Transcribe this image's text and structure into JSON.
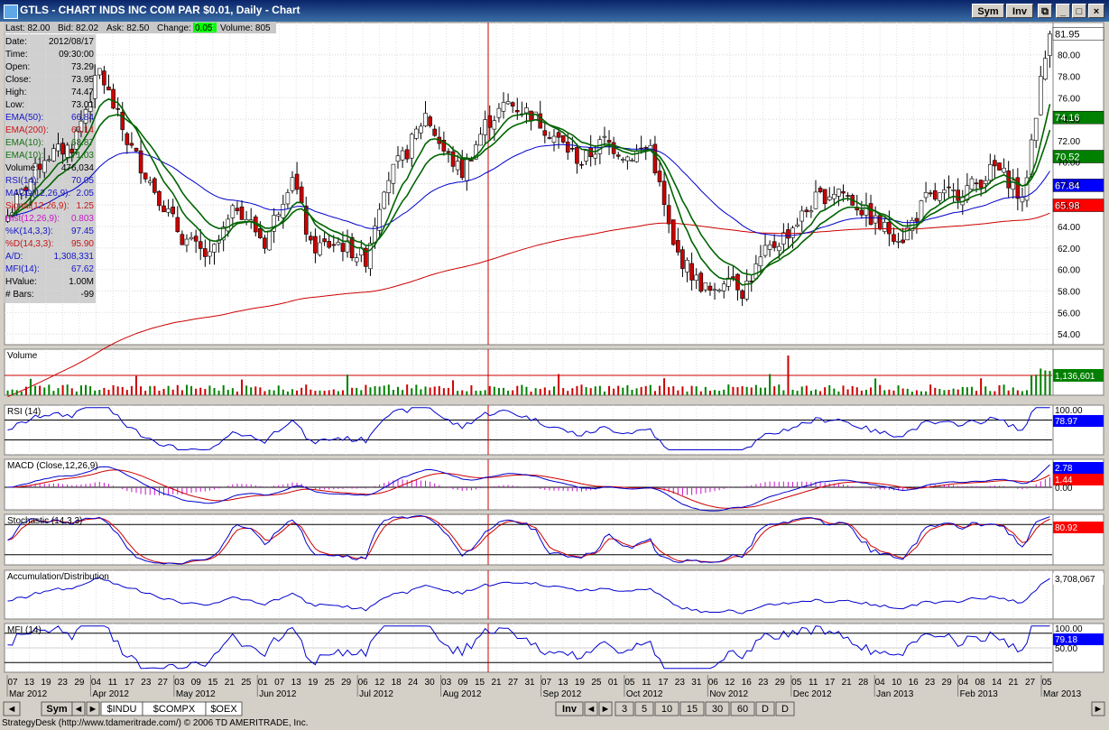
{
  "window": {
    "title": "GTLS - CHART INDS INC COM PAR $0.01, Daily - Chart",
    "buttons": [
      "Sym",
      "Inv"
    ]
  },
  "quote_bar": {
    "last": "Last: 82.00",
    "bid": "Bid: 82.02",
    "ask": "Ask: 82.50",
    "change_label": "Change:",
    "change_value": "0.05",
    "volume": "Volume: 805"
  },
  "data_window": [
    {
      "k": "Date:",
      "v": "2012/08/17",
      "c": "#000000"
    },
    {
      "k": "Time:",
      "v": "09:30:00",
      "c": "#000000"
    },
    {
      "k": "Open:",
      "v": "73.29",
      "c": "#000000"
    },
    {
      "k": "Close:",
      "v": "73.95",
      "c": "#000000"
    },
    {
      "k": "High:",
      "v": "74.47",
      "c": "#000000"
    },
    {
      "k": "Low:",
      "v": "73.01",
      "c": "#000000"
    },
    {
      "k": "EMA(50):",
      "v": "66.84",
      "c": "#1515c8"
    },
    {
      "k": "EMA(200):",
      "v": "63.14",
      "c": "#c81515"
    },
    {
      "k": "EMA(10):",
      "v": "68.87",
      "c": "#157015"
    },
    {
      "k": "EMA(10):",
      "v": "71.03",
      "c": "#157015"
    },
    {
      "k": "Volume:",
      "v": "476,034",
      "c": "#000000"
    },
    {
      "k": "RSI(14):",
      "v": "70.05",
      "c": "#1515c8"
    },
    {
      "k": "MACD(12,26,9):",
      "v": "2.05",
      "c": "#1515c8"
    },
    {
      "k": "Signal(12,26,9):",
      "v": "1.25",
      "c": "#c81515"
    },
    {
      "k": "Hist(12,26,9):",
      "v": "0.803",
      "c": "#c815c8"
    },
    {
      "k": "%K(14,3,3):",
      "v": "97.45",
      "c": "#1515c8"
    },
    {
      "k": "%D(14,3,3):",
      "v": "95.90",
      "c": "#c81515"
    },
    {
      "k": "A/D:",
      "v": "1,308,331",
      "c": "#1515c8"
    },
    {
      "k": "MFI(14):",
      "v": "67.62",
      "c": "#1515c8"
    },
    {
      "k": "HValue:",
      "v": "1.00M",
      "c": "#000000"
    },
    {
      "k": "# Bars:",
      "v": "-99",
      "c": "#000000"
    }
  ],
  "price_axis_ticks": [
    "54.00",
    "56.00",
    "58.00",
    "60.00",
    "62.00",
    "64.00",
    "66.00",
    "68.00",
    "70.00",
    "72.00",
    "74.00",
    "76.00",
    "78.00",
    "80.00"
  ],
  "price_badges": [
    {
      "text": "81.95",
      "bg": "#ffffff",
      "fg": "#000000",
      "value": 81.95
    },
    {
      "text": "74.16",
      "bg": "#008000",
      "fg": "#ffffff",
      "value": 74.16
    },
    {
      "text": "70.52",
      "bg": "#008000",
      "fg": "#ffffff",
      "value": 70.52
    },
    {
      "text": "67.84",
      "bg": "#0000ff",
      "fg": "#ffffff",
      "value": 67.84
    },
    {
      "text": "65.98",
      "bg": "#ff0000",
      "fg": "#ffffff",
      "value": 65.98
    }
  ],
  "panels": {
    "volume": {
      "label": "Volume",
      "badge": "1,136,601"
    },
    "rsi": {
      "label": "RSI (14)",
      "top_tick": "100.00",
      "badge": "78.97"
    },
    "macd": {
      "label": "MACD (Close,12,26,9)",
      "badge_blue": "2.78",
      "badge_red": "1.44",
      "zero_tick": "0.00"
    },
    "stoch": {
      "label": "Stochastic (14,3,3)",
      "badge": "80.92"
    },
    "ad": {
      "label": "Accumulation/Distribution",
      "badge": "3,708,067"
    },
    "mfi": {
      "label": "MFI (14)",
      "top_tick": "100.00",
      "mid_tick": "50.00",
      "badge": "79.18"
    }
  },
  "x_axis": {
    "days": [
      "07",
      "13",
      "19",
      "23",
      "29",
      "04",
      "11",
      "17",
      "23",
      "27",
      "03",
      "09",
      "15",
      "21",
      "25",
      "01",
      "07",
      "13",
      "19",
      "25",
      "29",
      "06",
      "12",
      "18",
      "24",
      "30",
      "03",
      "09",
      "15",
      "21",
      "27",
      "31",
      "07",
      "13",
      "19",
      "25",
      "01",
      "05",
      "11",
      "17",
      "23",
      "31",
      "06",
      "12",
      "16",
      "23",
      "29",
      "05",
      "11",
      "17",
      "21",
      "28",
      "04",
      "10",
      "16",
      "23",
      "29",
      "04",
      "08",
      "14",
      "21",
      "27",
      "05"
    ],
    "months": [
      "Mar 2012",
      "Apr 2012",
      "May 2012",
      "Jun 2012",
      "Jul 2012",
      "Aug 2012",
      "Sep 2012",
      "Oct 2012",
      "Nov 2012",
      "Dec 2012",
      "Jan 2013",
      "Feb 2013",
      "Mar 2013"
    ]
  },
  "bottom_toolbar": {
    "sym_button": "Sym",
    "symbol_tabs": [
      "$INDU",
      "$COMPX",
      "$OEX"
    ],
    "inv_button": "Inv",
    "period_buttons": [
      "3",
      "5",
      "10",
      "15",
      "30",
      "60",
      "D",
      "D"
    ]
  },
  "footer_text": "StrategyDesk (http://www.tdameritrade.com/) © 2006 TD AMERITRADE, Inc.",
  "chart_data": {
    "type": "candlestick",
    "title": "GTLS - CHART INDS INC COM PAR $0.01, Daily - Chart",
    "ylim": [
      53,
      83
    ],
    "crosshair_date": "2012/08/17",
    "close_anchors": [
      [
        0,
        65.0
      ],
      [
        8,
        70.5
      ],
      [
        14,
        71.5
      ],
      [
        20,
        78.5
      ],
      [
        26,
        72.0
      ],
      [
        32,
        67.5
      ],
      [
        38,
        63.0
      ],
      [
        44,
        61.0
      ],
      [
        50,
        66.0
      ],
      [
        56,
        62.5
      ],
      [
        62,
        69.0
      ],
      [
        66,
        62.0
      ],
      [
        72,
        62.5
      ],
      [
        78,
        61.0
      ],
      [
        82,
        68.0
      ],
      [
        87,
        71.0
      ],
      [
        91,
        74.5
      ],
      [
        95,
        71.0
      ],
      [
        99,
        69.0
      ],
      [
        104,
        73.5
      ],
      [
        109,
        75.5
      ],
      [
        114,
        74.5
      ],
      [
        120,
        72.0
      ],
      [
        125,
        70.0
      ],
      [
        130,
        72.0
      ],
      [
        135,
        70.5
      ],
      [
        140,
        71.5
      ],
      [
        145,
        62.0
      ],
      [
        150,
        59.0
      ],
      [
        154,
        57.5
      ],
      [
        157,
        60.0
      ],
      [
        160,
        58.0
      ],
      [
        165,
        61.5
      ],
      [
        170,
        63.5
      ],
      [
        176,
        66.5
      ],
      [
        181,
        67.5
      ],
      [
        185,
        66.0
      ],
      [
        190,
        64.0
      ],
      [
        195,
        63.0
      ],
      [
        200,
        66.5
      ],
      [
        206,
        67.0
      ],
      [
        211,
        68.0
      ],
      [
        215,
        69.5
      ],
      [
        219,
        68.0
      ],
      [
        221,
        66.0
      ],
      [
        223,
        72.0
      ],
      [
        225,
        77.5
      ],
      [
        227,
        81.95
      ]
    ],
    "ema_final": {
      "EMA(10) fast": 74.16,
      "EMA(10) slow": 70.52,
      "EMA(50)": 67.84,
      "EMA(200)": 65.98
    },
    "volume_latest": 1136601,
    "rsi_latest": 78.97,
    "macd_latest": 2.78,
    "signal_latest": 1.44,
    "stochastic_latest": 80.92,
    "ad_latest": 3708067,
    "mfi_latest": 79.18
  }
}
